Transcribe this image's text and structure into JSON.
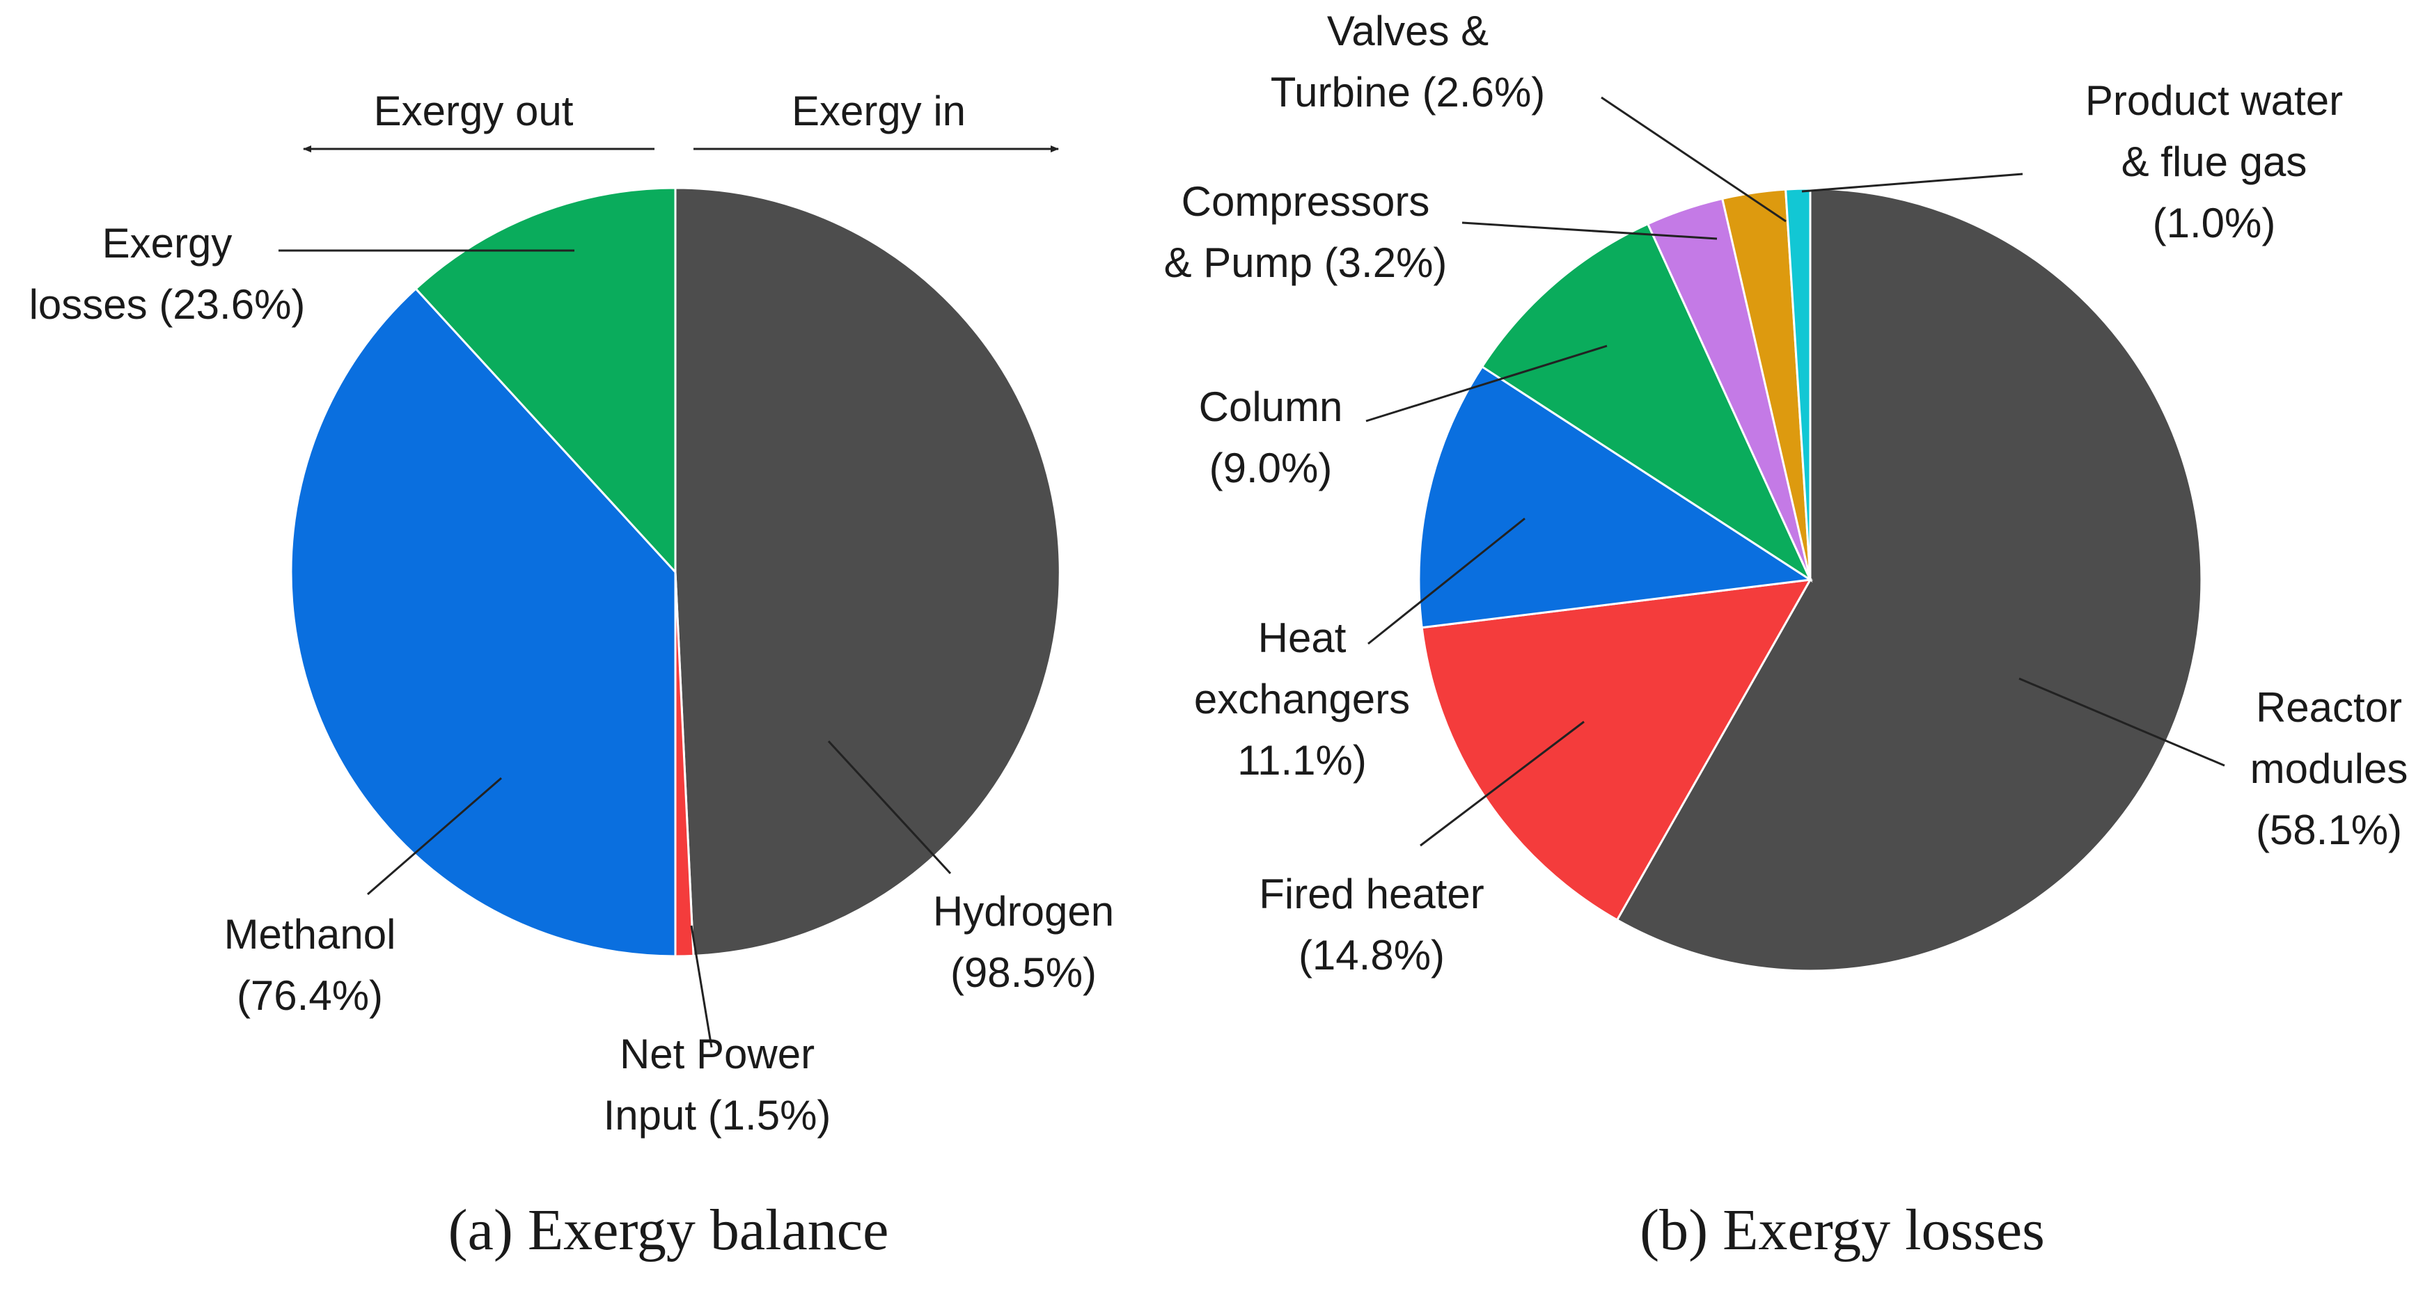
{
  "chart_data": [
    {
      "type": "pie",
      "title": "(a) Exergy balance",
      "arrows": {
        "left": "Exergy out",
        "right": "Exergy in"
      },
      "halves": [
        {
          "side": "right",
          "slices": [
            {
              "name": "Hydrogen",
              "value": 98.5,
              "color": "#4d4d4d",
              "label_lines": [
                "Hydrogen",
                "(98.5%)"
              ]
            },
            {
              "name": "Net Power Input",
              "value": 1.5,
              "color": "#f43c3c",
              "label_lines": [
                "Net Power",
                "Input (1.5%)"
              ]
            }
          ]
        },
        {
          "side": "left",
          "slices": [
            {
              "name": "Methanol",
              "value": 76.4,
              "color": "#0a6fdf",
              "label_lines": [
                "Methanol",
                "(76.4%)"
              ]
            },
            {
              "name": "Exergy losses",
              "value": 23.6,
              "color": "#0aac5c",
              "label_lines": [
                "Exergy",
                "losses (23.6%)"
              ]
            }
          ]
        }
      ]
    },
    {
      "type": "pie",
      "title": "(b) Exergy losses",
      "slices": [
        {
          "name": "Reactor modules",
          "value": 58.1,
          "color": "#4d4d4d",
          "label_lines": [
            "Reactor",
            "modules",
            "(58.1%)"
          ]
        },
        {
          "name": "Fired heater",
          "value": 14.8,
          "color": "#f43c3c",
          "label_lines": [
            "Fired heater",
            "(14.8%)"
          ]
        },
        {
          "name": "Heat exchangers",
          "value": 11.1,
          "color": "#0a6fdf",
          "label_lines": [
            "Heat",
            "exchangers",
            "11.1%)"
          ]
        },
        {
          "name": "Column",
          "value": 9.0,
          "color": "#0aac5c",
          "label_lines": [
            "Column",
            "(9.0%)"
          ]
        },
        {
          "name": "Compressors & Pump",
          "value": 3.2,
          "color": "#c47ae6",
          "label_lines": [
            "Compressors",
            "& Pump (3.2%)"
          ]
        },
        {
          "name": "Valves & Turbine",
          "value": 2.6,
          "color": "#dd9a0f",
          "label_lines": [
            "Valves &",
            "Turbine (2.6%)"
          ]
        },
        {
          "name": "Product water & flue gas",
          "value": 1.0,
          "color": "#12c7d4",
          "label_lines": [
            "Product water",
            "& flue gas",
            "(1.0%)"
          ]
        }
      ]
    }
  ]
}
